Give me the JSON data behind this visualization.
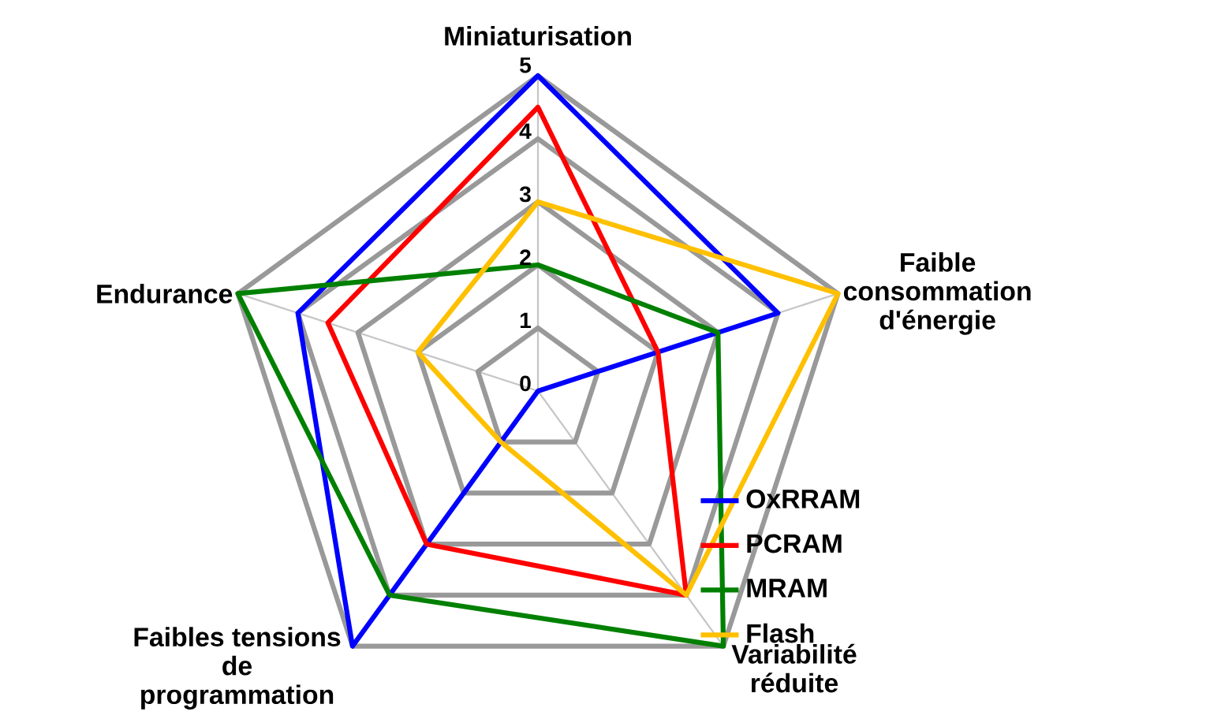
{
  "chart_data": {
    "type": "radar",
    "categories": [
      "Miniaturisation",
      "Faible consommation d'énergie",
      "Variabilité réduite",
      "Faibles tensions de programmation",
      "Endurance"
    ],
    "series": [
      {
        "name": "OxRRAM",
        "color": "#0000ff",
        "values": [
          5,
          4,
          0,
          5,
          4
        ]
      },
      {
        "name": "PCRAM",
        "color": "#ff0000",
        "values": [
          4.5,
          2,
          4,
          3,
          3.5
        ]
      },
      {
        "name": "MRAM",
        "color": "#008000",
        "values": [
          2,
          3,
          5,
          4,
          5
        ]
      },
      {
        "name": "Flash",
        "color": "#ffc000",
        "values": [
          3,
          5,
          4,
          1,
          2
        ]
      }
    ],
    "ylim": [
      0,
      5
    ],
    "yticks": [
      0,
      1,
      2,
      3,
      4,
      5
    ],
    "grid": true,
    "legend": "bottom right"
  }
}
